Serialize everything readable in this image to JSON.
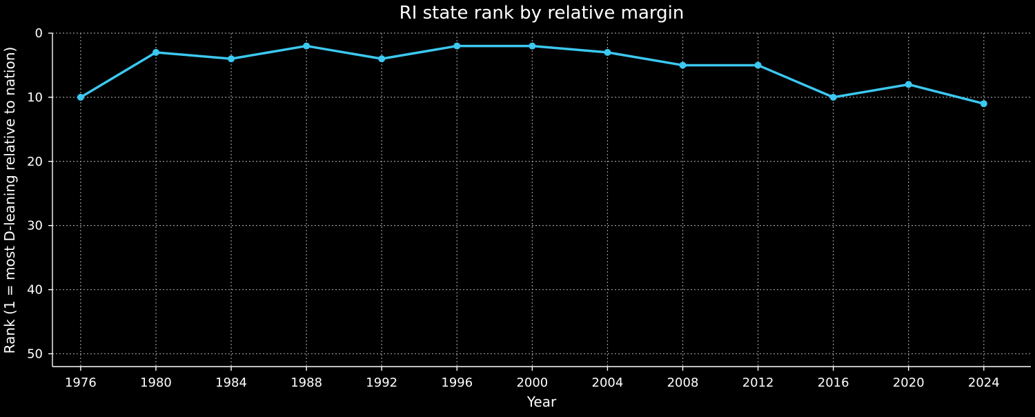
{
  "chart_data": {
    "type": "line",
    "title": "RI state rank by relative margin",
    "xlabel": "Year",
    "ylabel": "Rank (1 = most D-leaning relative to nation)",
    "x": [
      1976,
      1980,
      1984,
      1988,
      1992,
      1996,
      2000,
      2004,
      2008,
      2012,
      2016,
      2020,
      2024
    ],
    "series": [
      {
        "values": [
          10,
          3,
          4,
          2,
          4,
          2,
          2,
          3,
          5,
          5,
          10,
          8,
          11
        ],
        "color": "#3cc8f0"
      }
    ],
    "xlim": [
      1974.5,
      2026.5
    ],
    "ylim": [
      52,
      0
    ],
    "y_inverted": true,
    "xticks": [
      1976,
      1980,
      1984,
      1988,
      1992,
      1996,
      2000,
      2004,
      2008,
      2012,
      2016,
      2020,
      2024
    ],
    "yticks": [
      0,
      10,
      20,
      30,
      40,
      50
    ],
    "grid": true,
    "background": "#000000",
    "text_color": "#ffffff"
  }
}
